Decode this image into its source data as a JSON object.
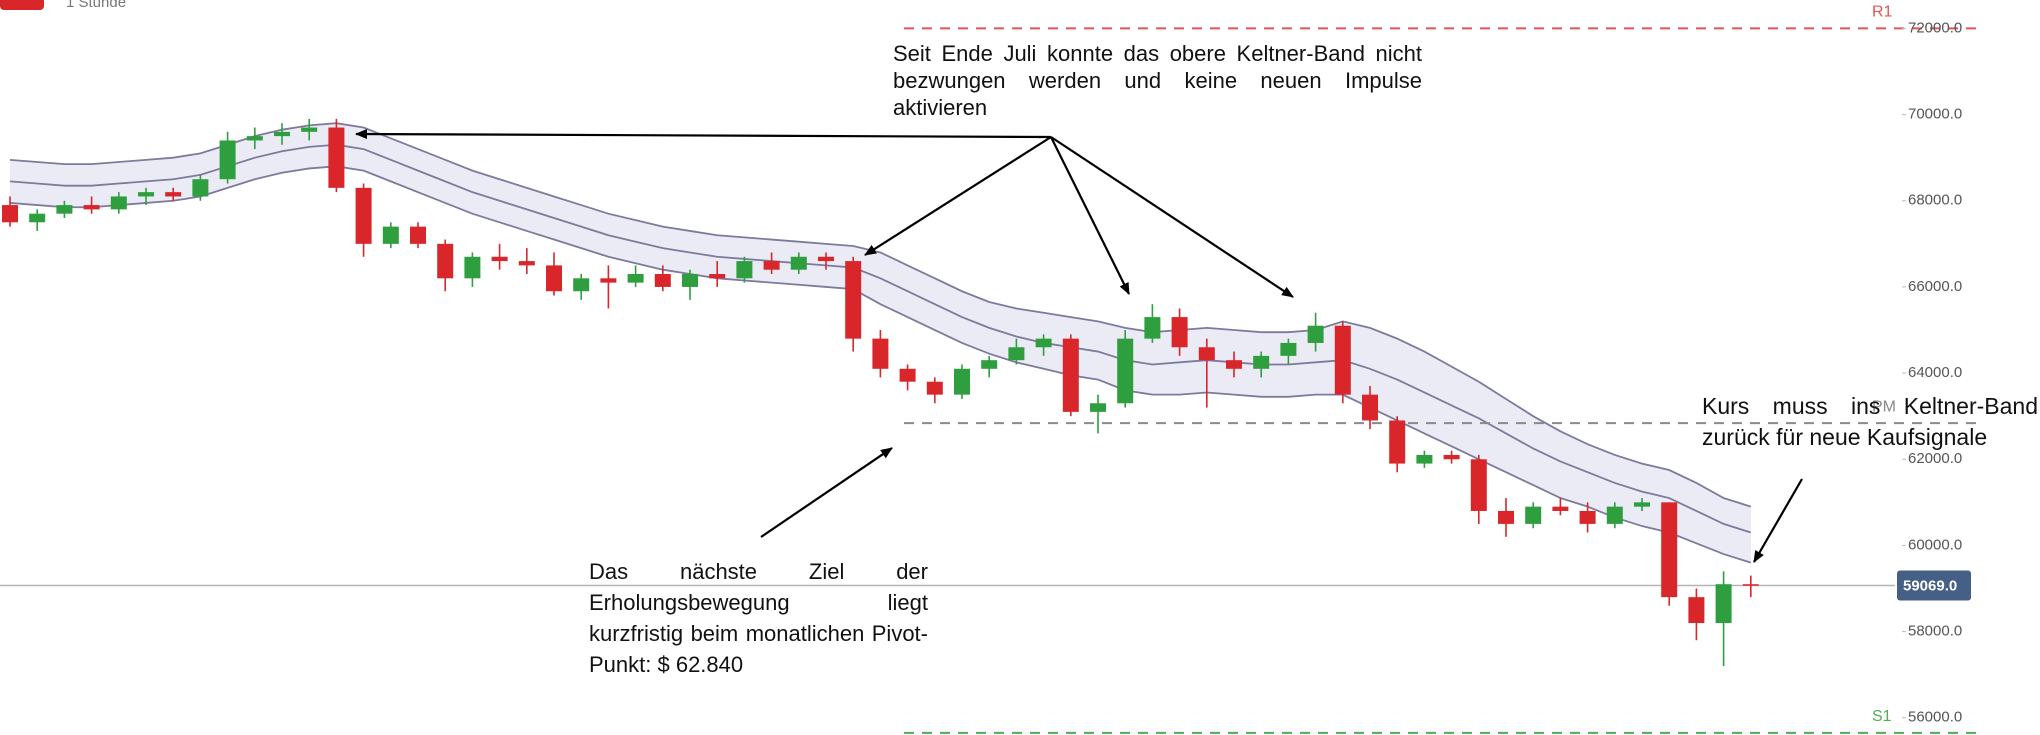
{
  "chart_data": {
    "type": "candlestick",
    "timeframe": "1 Stunde",
    "ylim": [
      55600,
      72660
    ],
    "yticks": [
      {
        "value": 56000,
        "label": "56000.0"
      },
      {
        "value": 58000,
        "label": "58000.0"
      },
      {
        "value": 60000,
        "label": "60000.0"
      },
      {
        "value": 62000,
        "label": "62000.0"
      },
      {
        "value": 64000,
        "label": "64000.0"
      },
      {
        "value": 66000,
        "label": "66000.0"
      },
      {
        "value": 68000,
        "label": "68000.0"
      },
      {
        "value": 70000,
        "label": "70000.0"
      },
      {
        "value": 72000,
        "label": "72000.0"
      }
    ],
    "up_color": "#2e9e3f",
    "down_color": "#d8262b",
    "open": [
      67900,
      67500,
      67700,
      67900,
      67800,
      68100,
      68200,
      68100,
      68500,
      69400,
      69500,
      69600,
      69700,
      68300,
      67000,
      67400,
      67000,
      66200,
      66700,
      66600,
      66500,
      65900,
      66200,
      66100,
      66300,
      66000,
      66300,
      66200,
      66600,
      66400,
      66700,
      66600,
      64800,
      64100,
      63800,
      63500,
      64100,
      64300,
      64600,
      64800,
      63100,
      63300,
      64800,
      65300,
      64600,
      64300,
      64100,
      64400,
      64700,
      65100,
      63500,
      62900,
      61900,
      62100,
      62000,
      60800,
      60500,
      60900,
      60800,
      60500,
      60900,
      61000,
      58800,
      58200,
      59100
    ],
    "high": [
      68100,
      67800,
      68000,
      68100,
      68200,
      68300,
      68300,
      68600,
      69600,
      69700,
      69800,
      69900,
      69900,
      68400,
      67500,
      67500,
      67100,
      66800,
      67000,
      66900,
      66800,
      66300,
      66500,
      66500,
      66500,
      66400,
      66600,
      66700,
      66800,
      66800,
      66800,
      66700,
      65000,
      64200,
      63900,
      64200,
      64400,
      64800,
      64900,
      64900,
      63500,
      65000,
      65600,
      65500,
      64800,
      64500,
      64500,
      64800,
      65400,
      65200,
      63700,
      63000,
      62200,
      62200,
      62100,
      61100,
      61000,
      61100,
      61000,
      61000,
      61100,
      61000,
      59000,
      59400,
      59300
    ],
    "low": [
      67400,
      67300,
      67600,
      67700,
      67700,
      67900,
      68000,
      68000,
      68400,
      69200,
      69300,
      69400,
      68200,
      66700,
      66900,
      66900,
      65900,
      66000,
      66400,
      66300,
      65800,
      65700,
      65500,
      66000,
      65900,
      65700,
      66000,
      66100,
      66300,
      66300,
      66400,
      64500,
      63900,
      63600,
      63300,
      63400,
      63900,
      64200,
      64400,
      63000,
      62600,
      63200,
      64700,
      64400,
      63200,
      63900,
      63900,
      64200,
      64500,
      63300,
      62700,
      61700,
      61800,
      61900,
      60500,
      60200,
      60400,
      60700,
      60300,
      60400,
      60800,
      58600,
      57800,
      57200,
      58800
    ],
    "close": [
      67500,
      67700,
      67900,
      67800,
      68100,
      68200,
      68100,
      68500,
      69400,
      69500,
      69600,
      69700,
      68300,
      67000,
      67400,
      67000,
      66200,
      66700,
      66600,
      66500,
      65900,
      66200,
      66100,
      66300,
      66000,
      66300,
      66200,
      66600,
      66400,
      66700,
      66600,
      64800,
      64100,
      63800,
      63500,
      64100,
      64300,
      64600,
      64800,
      63100,
      63300,
      64800,
      65300,
      64600,
      64300,
      64100,
      64400,
      64700,
      65100,
      63500,
      62900,
      61900,
      62100,
      62000,
      60800,
      60500,
      60900,
      60800,
      60500,
      60900,
      61000,
      58800,
      58200,
      59100,
      59069
    ],
    "keltner": {
      "color": "#7d7a9c",
      "fill": "#ebebf5",
      "upper": [
        68950,
        68900,
        68850,
        68850,
        68900,
        68950,
        69000,
        69100,
        69300,
        69500,
        69650,
        69750,
        69800,
        69700,
        69450,
        69200,
        68950,
        68700,
        68500,
        68300,
        68100,
        67900,
        67700,
        67550,
        67400,
        67300,
        67200,
        67150,
        67100,
        67050,
        67000,
        66950,
        66800,
        66500,
        66200,
        65900,
        65650,
        65500,
        65400,
        65300,
        65200,
        65050,
        64950,
        65000,
        65050,
        65000,
        64950,
        64950,
        65000,
        65200,
        65050,
        64800,
        64500,
        64150,
        63800,
        63400,
        63000,
        62650,
        62350,
        62100,
        61900,
        61750,
        61450,
        61100,
        60900
      ],
      "middle": [
        68450,
        68400,
        68350,
        68350,
        68400,
        68450,
        68500,
        68600,
        68800,
        69000,
        69150,
        69250,
        69300,
        69200,
        68950,
        68700,
        68450,
        68200,
        68000,
        67800,
        67600,
        67400,
        67200,
        67050,
        66900,
        66800,
        66700,
        66650,
        66600,
        66550,
        66500,
        66450,
        66200,
        65900,
        65600,
        65300,
        65050,
        64850,
        64700,
        64600,
        64500,
        64300,
        64200,
        64250,
        64300,
        64250,
        64200,
        64200,
        64250,
        64300,
        64100,
        63850,
        63550,
        63250,
        62950,
        62600,
        62250,
        61950,
        61700,
        61450,
        61250,
        61100,
        60800,
        60500,
        60300
      ],
      "lower": [
        67950,
        67900,
        67850,
        67850,
        67900,
        67950,
        68000,
        68100,
        68300,
        68500,
        68650,
        68750,
        68800,
        68700,
        68450,
        68200,
        67950,
        67700,
        67500,
        67300,
        67100,
        66900,
        66700,
        66550,
        66400,
        66300,
        66200,
        66150,
        66100,
        66050,
        66000,
        65950,
        65600,
        65300,
        65000,
        64700,
        64450,
        64250,
        64100,
        63950,
        63850,
        63600,
        63500,
        63500,
        63550,
        63500,
        63450,
        63450,
        63500,
        63500,
        63200,
        62900,
        62600,
        62300,
        62000,
        61700,
        61400,
        61100,
        60900,
        60650,
        60450,
        60300,
        60050,
        59800,
        59600
      ]
    },
    "levels": [
      {
        "name": "R1",
        "value": 72000,
        "color": "#e05555"
      },
      {
        "name": "PM",
        "value": 62840,
        "color": "#8a8a8a"
      },
      {
        "name": "S1",
        "value": 55650,
        "color": "#4caf50"
      }
    ],
    "current_price": {
      "value": 59069,
      "label": "59069.0",
      "color": "#465f86"
    },
    "annotations": [
      "Seit Ende Juli konnte das obere Keltner-Band nicht bezwungen werden und keine neuen Impulse aktivieren",
      "Das nächste Ziel der Erholungsbewegung liegt kurzfristig beim monatlichen Pivot-Punkt: $ 62.840",
      "Kurs muss ins Keltner-Band zurück für neue Kaufsignale"
    ]
  }
}
